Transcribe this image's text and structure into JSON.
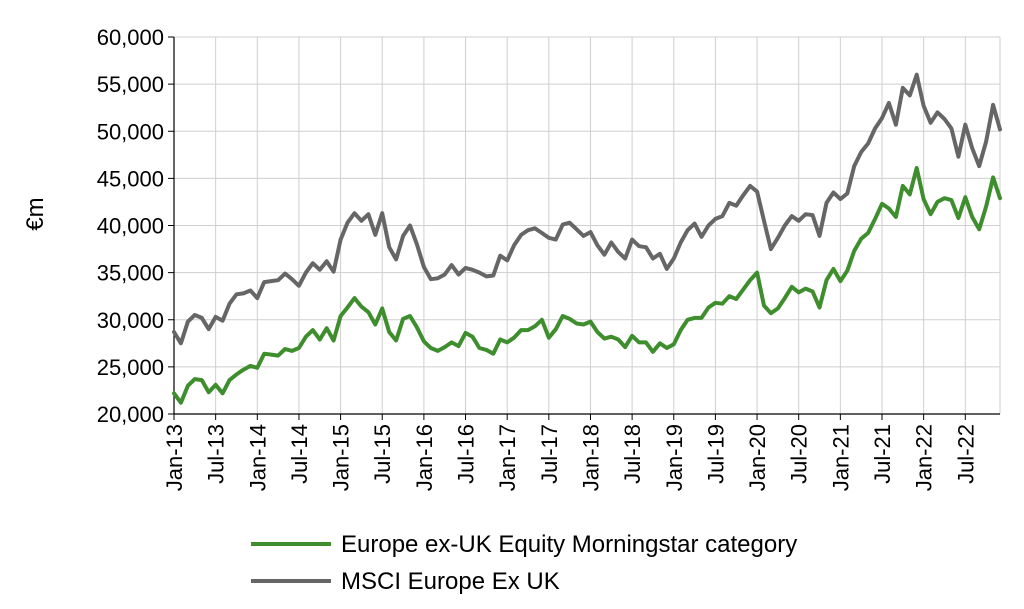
{
  "chart_data": {
    "type": "line",
    "ylabel": "€m",
    "xlabel": "",
    "ylim": [
      20000,
      60000
    ],
    "yticks": [
      "20,000",
      "25,000",
      "30,000",
      "35,000",
      "40,000",
      "45,000",
      "50,000",
      "55,000",
      "60,000"
    ],
    "ytick_values": [
      20000,
      25000,
      30000,
      35000,
      40000,
      45000,
      50000,
      55000,
      60000
    ],
    "xticks": [
      "Jan-13",
      "Jul-13",
      "Jan-14",
      "Jul-14",
      "Jan-15",
      "Jul-15",
      "Jan-16",
      "Jul-16",
      "Jan-17",
      "Jul-17",
      "Jan-18",
      "Jul-18",
      "Jan-19",
      "Jul-19",
      "Jan-20",
      "Jul-20",
      "Jan-21",
      "Jul-21",
      "Jan-22",
      "Jul-22"
    ],
    "grid": true,
    "legend_position": "bottom",
    "x_start": "Jan-13",
    "x_end": "Dec-22",
    "series": [
      {
        "name": "Europe ex-UK Equity Morningstar category",
        "color": "#3e8e2e",
        "values": [
          22200,
          21200,
          23000,
          23700,
          23600,
          22300,
          23100,
          22200,
          23600,
          24200,
          24700,
          25100,
          24900,
          26400,
          26300,
          26200,
          26900,
          26700,
          27000,
          28200,
          28900,
          27900,
          29100,
          27800,
          30400,
          31300,
          32300,
          31400,
          30800,
          29500,
          31200,
          28700,
          27800,
          30100,
          30400,
          29200,
          27700,
          27000,
          26700,
          27100,
          27600,
          27200,
          28600,
          28200,
          27000,
          26800,
          26400,
          27900,
          27600,
          28100,
          28900,
          28900,
          29300,
          30000,
          28100,
          29000,
          30400,
          30100,
          29600,
          29500,
          29800,
          28700,
          28000,
          28200,
          27900,
          27100,
          28300,
          27600,
          27600,
          26600,
          27500,
          27000,
          27400,
          28900,
          30000,
          30200,
          30200,
          31300,
          31800,
          31700,
          32500,
          32200,
          33200,
          34200,
          35000,
          31500,
          30700,
          31200,
          32300,
          33500,
          32900,
          33300,
          33000,
          31300,
          34200,
          35400,
          34100,
          35200,
          37300,
          38600,
          39200,
          40700,
          42300,
          41800,
          40900,
          44200,
          43300,
          46100,
          42800,
          41200,
          42500,
          42900,
          42700,
          40800,
          43000,
          40900,
          39600,
          42000,
          45100,
          42900
        ]
      },
      {
        "name": "MSCI Europe Ex UK",
        "color": "#666666",
        "values": [
          28700,
          27500,
          29800,
          30500,
          30200,
          29000,
          30300,
          29900,
          31700,
          32700,
          32800,
          33100,
          32300,
          34000,
          34100,
          34200,
          34900,
          34300,
          33600,
          35000,
          36000,
          35300,
          36200,
          35100,
          38500,
          40300,
          41300,
          40500,
          41200,
          39000,
          41300,
          37700,
          36400,
          38900,
          40000,
          38000,
          35600,
          34300,
          34400,
          34800,
          35800,
          34800,
          35500,
          35300,
          35000,
          34600,
          34700,
          36800,
          36300,
          37900,
          39000,
          39500,
          39700,
          39200,
          38700,
          38500,
          40100,
          40300,
          39600,
          38900,
          39300,
          37900,
          36900,
          38200,
          37200,
          36500,
          38500,
          37800,
          37700,
          36500,
          37000,
          35400,
          36500,
          38200,
          39500,
          40200,
          38800,
          40000,
          40700,
          41000,
          42400,
          42100,
          43200,
          44200,
          43600,
          40500,
          37500,
          38700,
          40000,
          41000,
          40500,
          41200,
          41100,
          38900,
          42400,
          43500,
          42800,
          43400,
          46300,
          47800,
          48700,
          50300,
          51400,
          53000,
          50700,
          54600,
          53800,
          56000,
          52700,
          50900,
          52000,
          51300,
          50300,
          47300,
          50700,
          48200,
          46300,
          48900,
          52800,
          50200
        ]
      }
    ]
  }
}
